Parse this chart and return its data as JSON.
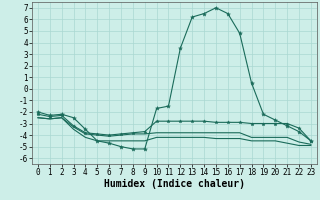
{
  "x": [
    0,
    1,
    2,
    3,
    4,
    5,
    6,
    7,
    8,
    9,
    10,
    11,
    12,
    13,
    14,
    15,
    16,
    17,
    18,
    19,
    20,
    21,
    22,
    23
  ],
  "line1": [
    -2,
    -2.3,
    -2.2,
    -2.5,
    -3.5,
    -4.5,
    -4.7,
    -5.0,
    -5.2,
    -5.2,
    -1.7,
    -1.5,
    3.5,
    6.2,
    6.5,
    7.0,
    6.5,
    4.8,
    0.5,
    -2.2,
    -2.7,
    -3.2,
    -3.7,
    -4.5
  ],
  "line2": [
    -2.2,
    -2.4,
    -2.3,
    -3.2,
    -3.8,
    -3.9,
    -4.0,
    -3.9,
    -3.8,
    -3.7,
    -2.8,
    -2.8,
    -2.8,
    -2.8,
    -2.8,
    -2.9,
    -2.9,
    -2.9,
    -3.0,
    -3.0,
    -3.0,
    -3.0,
    -3.4,
    -4.5
  ],
  "line3": [
    -2.5,
    -2.6,
    -2.5,
    -3.3,
    -3.9,
    -4.0,
    -4.1,
    -4.0,
    -3.9,
    -3.9,
    -3.8,
    -3.8,
    -3.8,
    -3.8,
    -3.8,
    -3.8,
    -3.8,
    -3.8,
    -4.2,
    -4.2,
    -4.2,
    -4.2,
    -4.6,
    -4.8
  ],
  "line4": [
    -2.5,
    -2.6,
    -2.5,
    -3.5,
    -4.2,
    -4.5,
    -4.5,
    -4.5,
    -4.5,
    -4.5,
    -4.2,
    -4.2,
    -4.2,
    -4.2,
    -4.2,
    -4.3,
    -4.3,
    -4.3,
    -4.5,
    -4.5,
    -4.5,
    -4.7,
    -4.9,
    -4.9
  ],
  "bg_color": "#cdeee8",
  "grid_color": "#aad8d2",
  "line_color": "#1a6b5a",
  "xlabel": "Humidex (Indice chaleur)",
  "ylim": [
    -6.5,
    7.5
  ],
  "xlim": [
    -0.5,
    23.5
  ],
  "yticks": [
    -6,
    -5,
    -4,
    -3,
    -2,
    -1,
    0,
    1,
    2,
    3,
    4,
    5,
    6,
    7
  ],
  "xticks": [
    0,
    1,
    2,
    3,
    4,
    5,
    6,
    7,
    8,
    9,
    10,
    11,
    12,
    13,
    14,
    15,
    16,
    17,
    18,
    19,
    20,
    21,
    22,
    23
  ],
  "tick_fontsize": 5.5,
  "xlabel_fontsize": 7.0
}
